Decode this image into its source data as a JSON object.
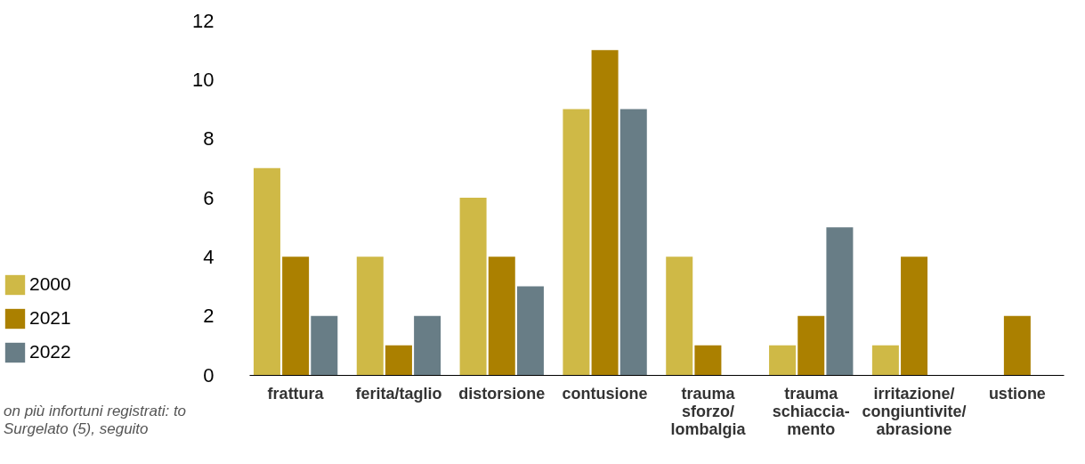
{
  "chart_data": {
    "type": "bar",
    "categories": [
      "frattura",
      "ferita/taglio",
      "distorsione",
      "contusione",
      "trauma\nsforzo/\nlombalgia",
      "trauma\nschiaccia-\nmento",
      "irritazione/\ncongiuntivite/\nabrasione",
      "ustione"
    ],
    "series": [
      {
        "name": "2000",
        "color": "#cfb946",
        "values": [
          7,
          4,
          6,
          9,
          4,
          1,
          1,
          null
        ]
      },
      {
        "name": "2021",
        "color": "#ab8000",
        "values": [
          4,
          1,
          4,
          11,
          1,
          2,
          4,
          2
        ]
      },
      {
        "name": "2022",
        "color": "#687d86",
        "values": [
          2,
          2,
          3,
          9,
          null,
          5,
          null,
          null
        ]
      }
    ],
    "ylim": [
      0,
      12
    ],
    "yticks": [
      0,
      2,
      4,
      6,
      8,
      10,
      12
    ],
    "grid": false,
    "legend": "left",
    "annotations": [
      "on più infortuni registrati: to Surgelato (5), seguito"
    ]
  }
}
